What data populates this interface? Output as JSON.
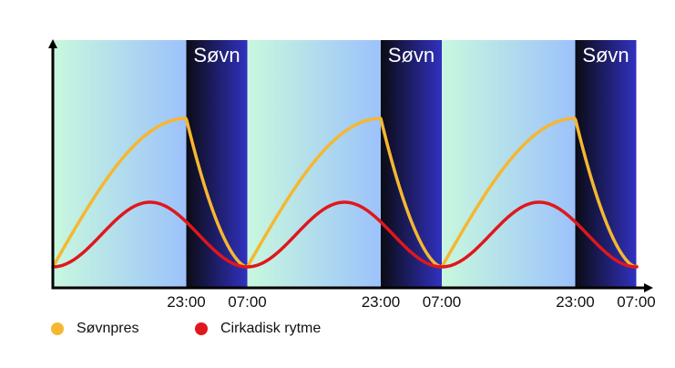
{
  "chart_data": {
    "type": "line",
    "cycles": [
      {
        "sleep_label": "Søvn",
        "sleep_start": "23:00",
        "sleep_end": "07:00"
      },
      {
        "sleep_label": "Søvn",
        "sleep_start": "23:00",
        "sleep_end": "07:00"
      },
      {
        "sleep_label": "Søvn",
        "sleep_start": "23:00",
        "sleep_end": "07:00"
      }
    ],
    "x_ticks": [
      "23:00",
      "07:00",
      "23:00",
      "07:00",
      "23:00",
      "07:00"
    ],
    "series": [
      {
        "name": "Søvnpres",
        "color": "#f5b731"
      },
      {
        "name": "Cirkadisk rytme",
        "color": "#e0171c"
      }
    ],
    "xlabel": "",
    "ylabel": "",
    "grid": false,
    "legend_position": "bottom-left",
    "colors": {
      "day_gradient_start": "#c8f8de",
      "day_gradient_end": "#9cc2fb",
      "night_gradient_start": "#0b0b14",
      "night_gradient_end": "#3131c0",
      "axis": "#000000"
    }
  },
  "legend": {
    "items": [
      {
        "label": "Søvnpres",
        "color": "#f5b731"
      },
      {
        "label": "Cirkadisk rytme",
        "color": "#e0171c"
      }
    ]
  }
}
